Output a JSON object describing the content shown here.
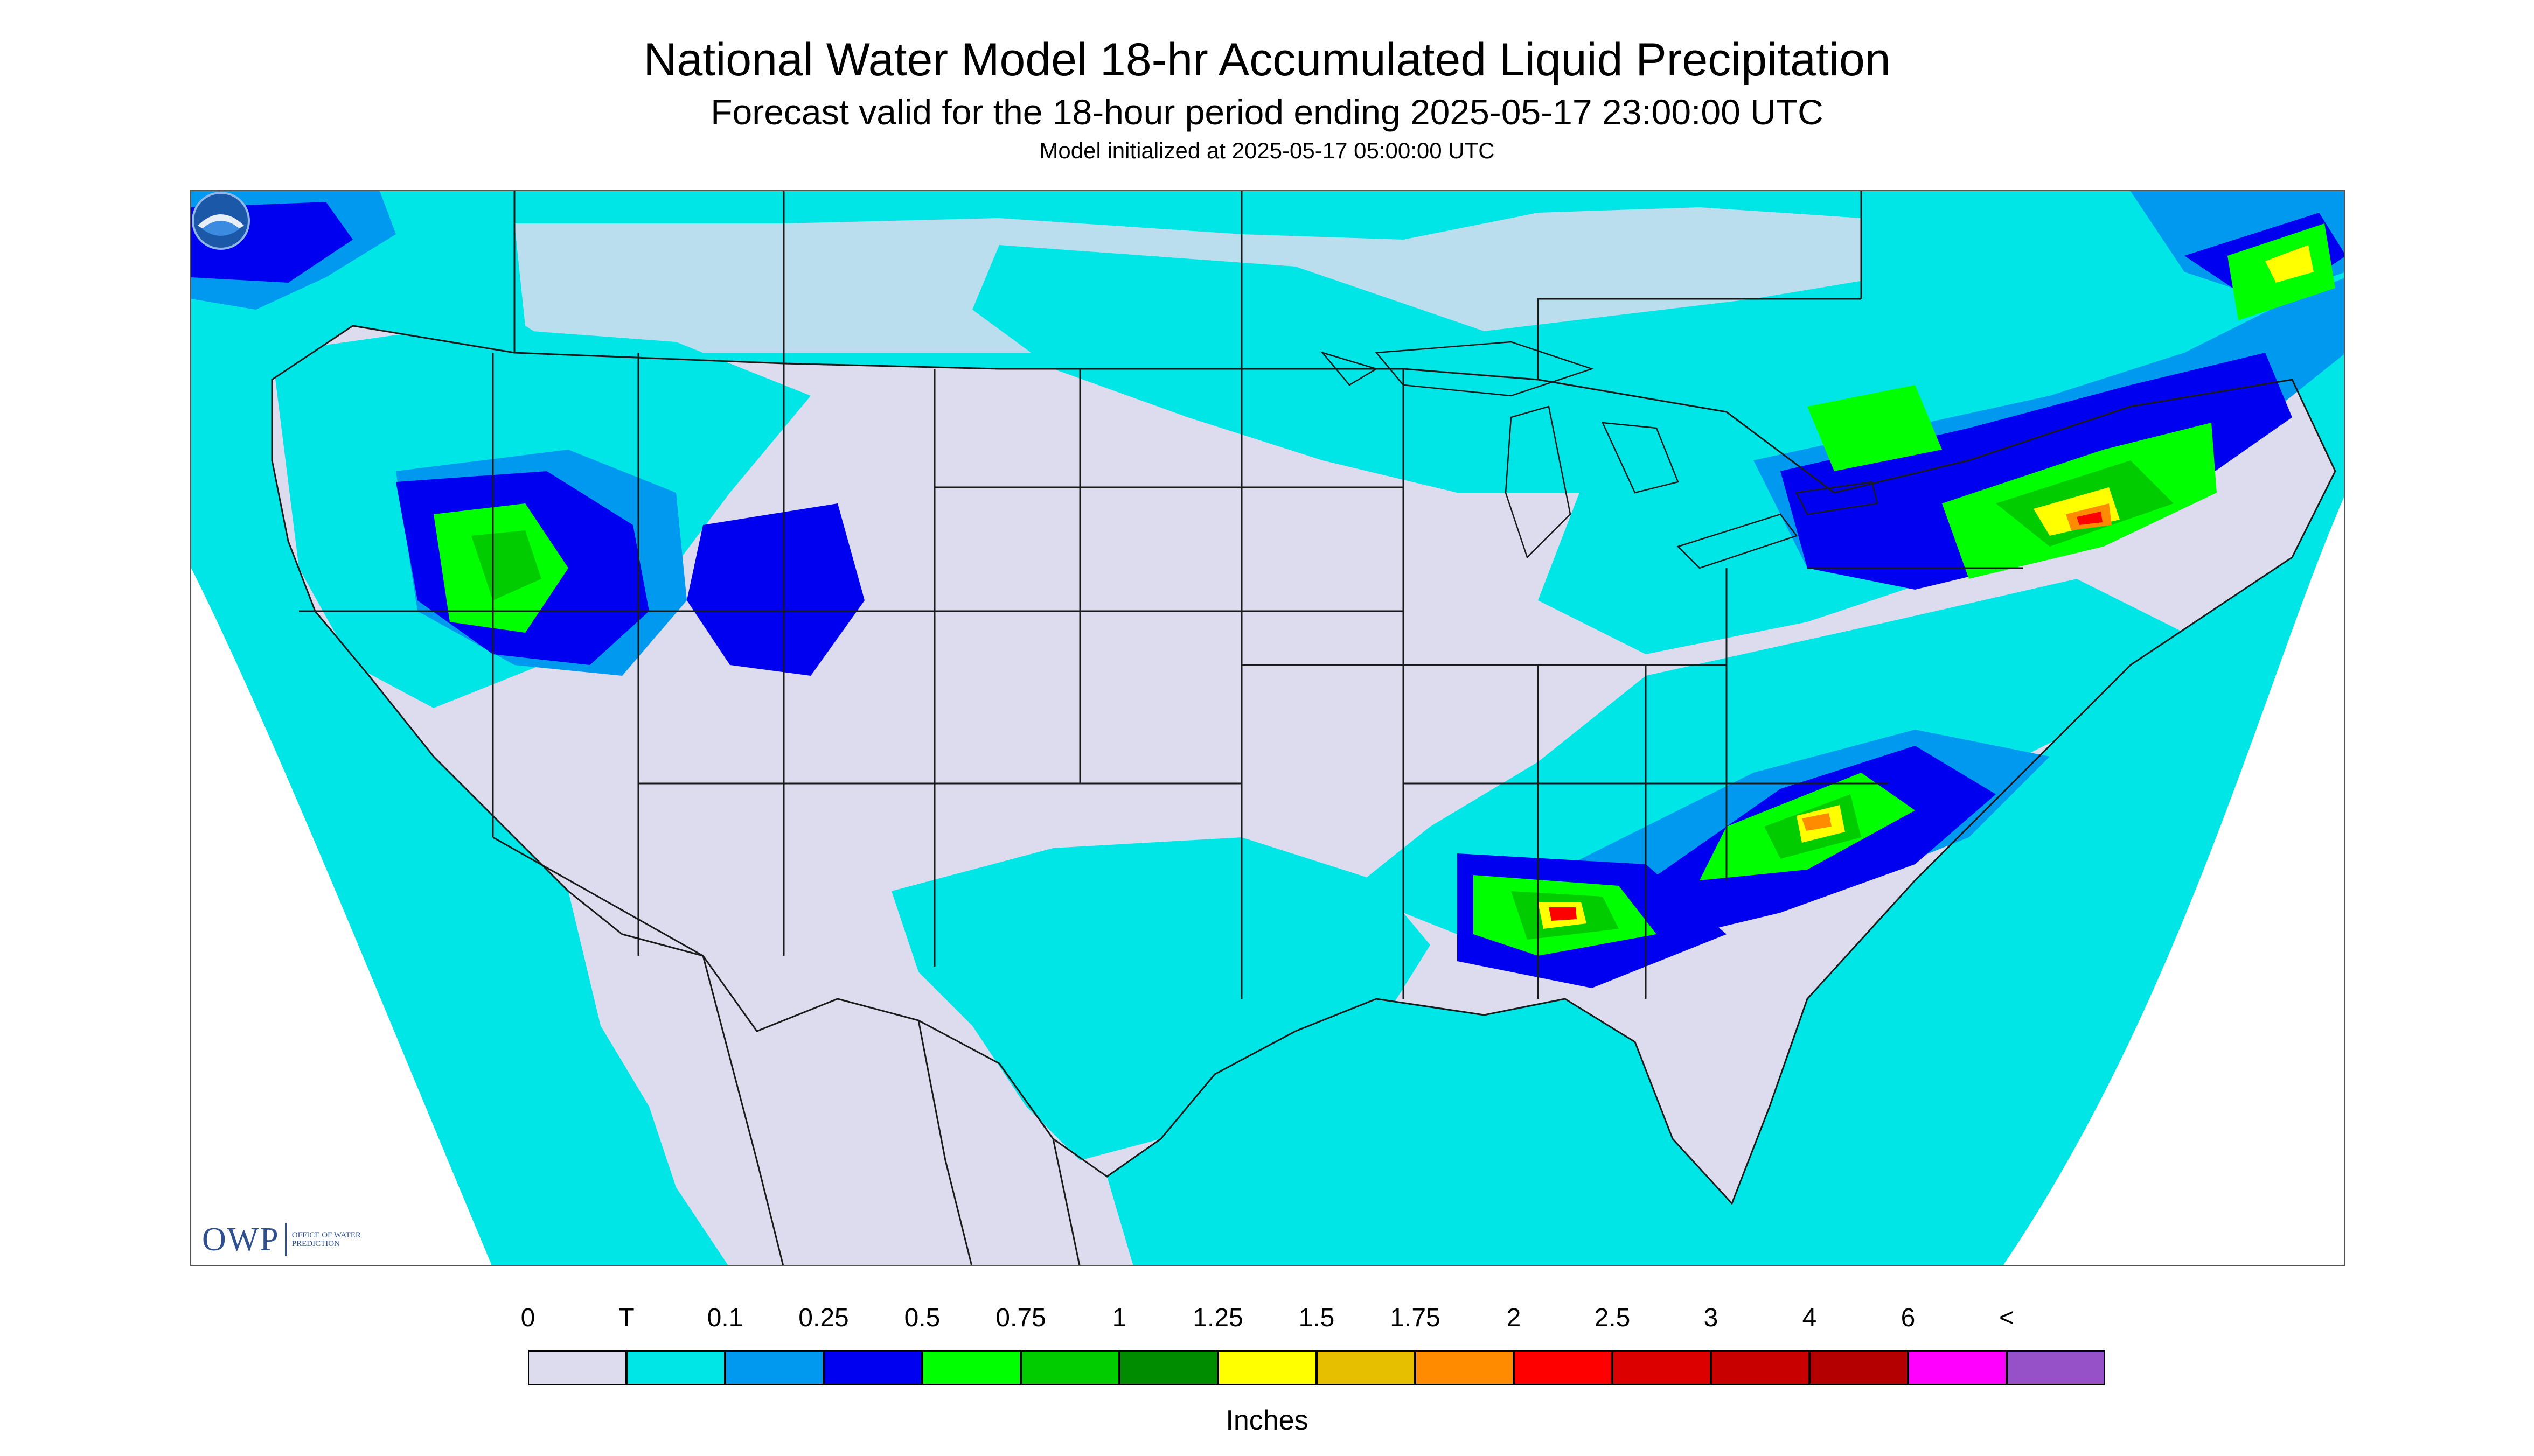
{
  "header": {
    "title": "National Water Model 18-hr Accumulated Liquid Precipitation",
    "subtitle": "Forecast valid for the 18-hour period ending 2025-05-17 23:00:00 UTC",
    "init": "Model initialized at 2025-05-17 05:00:00 UTC"
  },
  "map": {
    "region": "CONUS",
    "colors": {
      "land_none": "#dcdcee",
      "trace": "#00e6e6",
      "outside": "#ffffff",
      "borders": "#1a1a1a"
    }
  },
  "logos": {
    "owp_letters": "OWP",
    "owp_text": "OFFICE OF WATER PREDICTION",
    "noaa_text": "NOAA"
  },
  "legend": {
    "units": "Inches",
    "labels": [
      "0",
      "T",
      "0.1",
      "0.25",
      "0.5",
      "0.75",
      "1",
      "1.25",
      "1.5",
      "1.75",
      "2",
      "2.5",
      "3",
      "4",
      "6",
      "<"
    ],
    "colors": [
      "#dcdcee",
      "#00e6e6",
      "#0099f0",
      "#0000f0",
      "#00ff00",
      "#00cc00",
      "#008c00",
      "#ffff00",
      "#e6c000",
      "#ff8c00",
      "#ff0000",
      "#dc0000",
      "#c80000",
      "#b40000",
      "#ff00ff",
      "#9650c8"
    ]
  }
}
